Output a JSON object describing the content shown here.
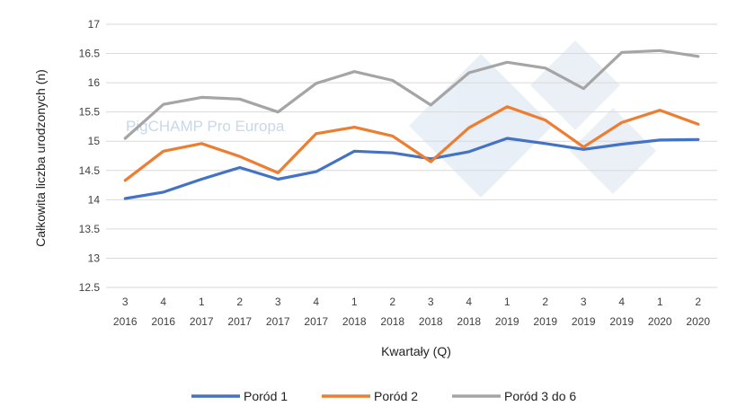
{
  "chart_data": {
    "type": "line",
    "title": "",
    "xlabel": "Kwartały (Q)",
    "ylabel": "Całkowita liczba urodzonych (n)",
    "ylim": [
      12.5,
      17
    ],
    "yticks": [
      "12.5",
      "13",
      "13.5",
      "14",
      "14.5",
      "15",
      "15.5",
      "16",
      "16.5",
      "17"
    ],
    "grid": "horizontal",
    "legend_position": "bottom",
    "categories": [
      {
        "q": "3",
        "year": "2016"
      },
      {
        "q": "4",
        "year": "2016"
      },
      {
        "q": "1",
        "year": "2017"
      },
      {
        "q": "2",
        "year": "2017"
      },
      {
        "q": "3",
        "year": "2017"
      },
      {
        "q": "4",
        "year": "2017"
      },
      {
        "q": "1",
        "year": "2018"
      },
      {
        "q": "2",
        "year": "2018"
      },
      {
        "q": "3",
        "year": "2018"
      },
      {
        "q": "4",
        "year": "2018"
      },
      {
        "q": "1",
        "year": "2019"
      },
      {
        "q": "2",
        "year": "2019"
      },
      {
        "q": "3",
        "year": "2019"
      },
      {
        "q": "4",
        "year": "2019"
      },
      {
        "q": "1",
        "year": "2020"
      },
      {
        "q": "2",
        "year": "2020"
      }
    ],
    "series": [
      {
        "name": "Poród 1",
        "color": "#4472C4",
        "values": [
          14.02,
          14.13,
          14.35,
          14.55,
          14.35,
          14.48,
          14.83,
          14.8,
          14.7,
          14.82,
          15.05,
          14.96,
          14.86,
          14.95,
          15.02,
          15.03
        ]
      },
      {
        "name": "Poród 2",
        "color": "#ED7D31",
        "values": [
          14.33,
          14.83,
          14.96,
          14.74,
          14.46,
          15.13,
          15.24,
          15.09,
          14.65,
          15.23,
          15.59,
          15.36,
          14.9,
          15.32,
          15.53,
          15.29
        ]
      },
      {
        "name": "Poród 3 do 6",
        "color": "#A5A5A5",
        "values": [
          15.05,
          15.63,
          15.75,
          15.72,
          15.5,
          15.99,
          16.19,
          16.04,
          15.62,
          16.17,
          16.35,
          16.25,
          15.9,
          16.52,
          16.55,
          16.45
        ]
      }
    ],
    "watermark_text": "PigCHAMP Pro Europa"
  }
}
